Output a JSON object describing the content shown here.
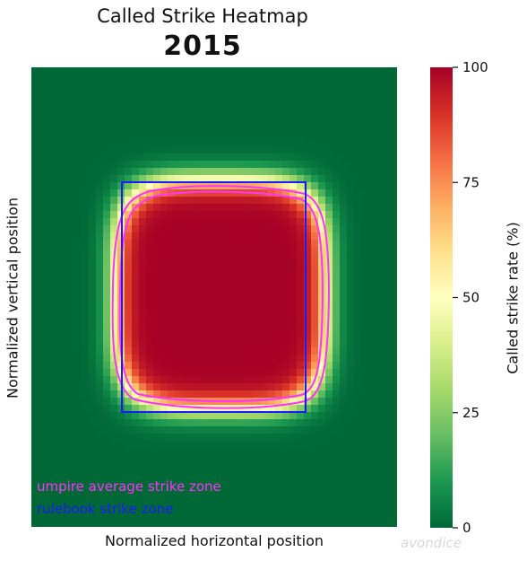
{
  "chart_data": {
    "type": "heatmap",
    "title": "Called Strike Heatmap",
    "subtitle": "2015",
    "xlabel": "Normalized horizontal position",
    "ylabel": "Normalized vertical position",
    "colorbar": {
      "label": "Called strike rate (%)",
      "range": [
        0,
        100
      ],
      "ticks": [
        0,
        25,
        50,
        75,
        100
      ],
      "colormap": "RdYlGn_r"
    },
    "zones": [
      {
        "name": "umpire average strike zone",
        "color": "#ff33ff"
      },
      {
        "name": "rulebook strike zone",
        "color": "#1a1aff"
      }
    ],
    "peak_rate": 100,
    "outside_rate": 0,
    "watermark": "avondice"
  }
}
